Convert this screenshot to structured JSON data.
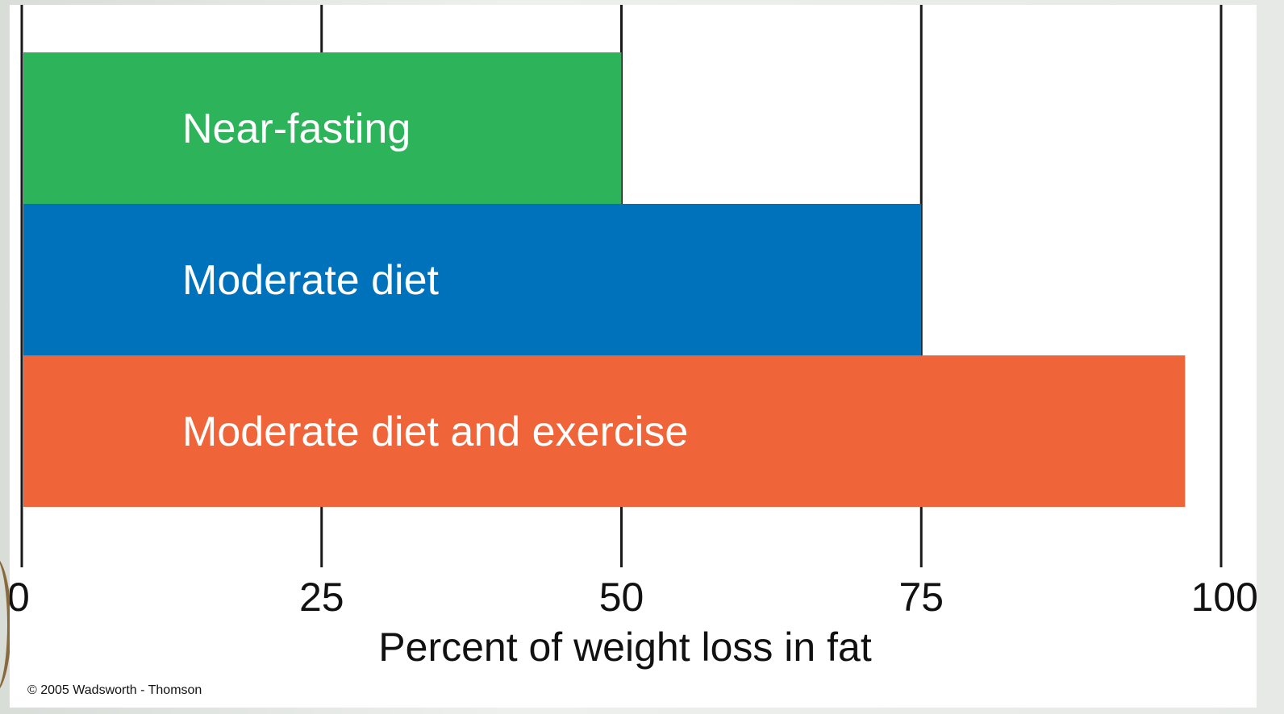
{
  "chart_data": {
    "type": "bar",
    "orientation": "horizontal",
    "categories": [
      "Near-fasting",
      "Moderate diet",
      "Moderate diet and exercise"
    ],
    "values": [
      50,
      75,
      97
    ],
    "colors": [
      "#2db45a",
      "#0072bb",
      "#f0643a"
    ],
    "xlabel": "Percent of weight loss in fat",
    "ylabel": "",
    "xlim": [
      0,
      100
    ],
    "xticks": [
      "0",
      "25",
      "50",
      "75",
      "100"
    ],
    "grid": true
  },
  "footer": {
    "copyright": "© 2005 Wadsworth - Thomson"
  }
}
